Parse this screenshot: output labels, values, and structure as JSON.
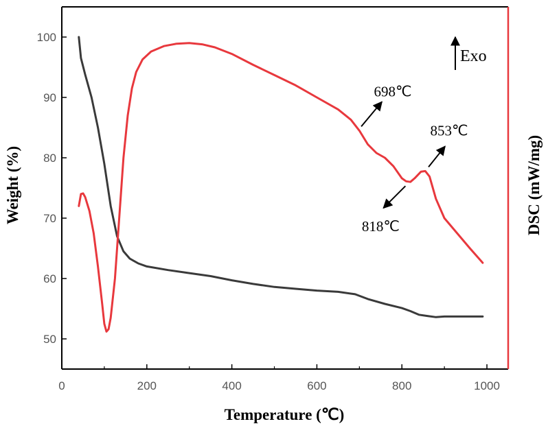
{
  "chart_data": {
    "type": "line",
    "title": "",
    "xlabel": "Temperature (℃)",
    "ylabel": "Weight (%)",
    "y2label": "DSC (mW/mg)",
    "xlim": [
      0,
      1050
    ],
    "ylim": [
      45,
      105
    ],
    "xticks": [
      "0",
      "200",
      "400",
      "600",
      "800",
      "1000"
    ],
    "yticks": [
      "50",
      "60",
      "70",
      "80",
      "90",
      "100"
    ],
    "grid": false,
    "legend": "none",
    "colors": {
      "tg": "#3a3a3a",
      "dsc": "#e8383d",
      "right_axis": "#e8383d"
    },
    "series": [
      {
        "axis": "left",
        "color": "#3a3a3a",
        "x": [
          40,
          45,
          55,
          70,
          85,
          100,
          115,
          130,
          145,
          160,
          180,
          200,
          250,
          300,
          350,
          400,
          450,
          500,
          550,
          600,
          650,
          690,
          720,
          760,
          800,
          820,
          840,
          860,
          880,
          900,
          950,
          990
        ],
        "y": [
          100,
          96.5,
          93.8,
          90,
          85,
          79,
          72,
          67,
          64.5,
          63.3,
          62.5,
          62,
          61.4,
          60.9,
          60.4,
          59.7,
          59.1,
          58.6,
          58.3,
          58,
          57.8,
          57.4,
          56.6,
          55.8,
          55.1,
          54.6,
          54,
          53.8,
          53.6,
          53.7,
          53.7,
          53.7
        ]
      },
      {
        "axis": "right",
        "color": "#e8383d",
        "x": [
          40,
          45,
          50,
          55,
          65,
          75,
          85,
          95,
          100,
          105,
          110,
          115,
          125,
          135,
          145,
          155,
          165,
          175,
          190,
          210,
          240,
          270,
          300,
          330,
          360,
          400,
          450,
          500,
          550,
          600,
          650,
          680,
          700,
          720,
          740,
          760,
          780,
          800,
          810,
          820,
          830,
          845,
          855,
          865,
          880,
          900,
          930,
          960,
          990
        ],
        "y": [
          72,
          74,
          74.1,
          73.5,
          71.2,
          67.5,
          62,
          55.8,
          52.5,
          51.2,
          51.6,
          53.5,
          60,
          70,
          80,
          87,
          91.5,
          94.2,
          96.3,
          97.6,
          98.5,
          98.9,
          99,
          98.8,
          98.3,
          97.2,
          95.4,
          93.7,
          92,
          90,
          88,
          86.3,
          84.5,
          82.2,
          80.8,
          80,
          78.6,
          76.6,
          76.1,
          76,
          76.6,
          77.7,
          77.8,
          76.9,
          73.2,
          70,
          67.5,
          65,
          62.6
        ]
      }
    ],
    "annotations": [
      {
        "text": "698℃",
        "x": 698,
        "y": 84.5
      },
      {
        "text": "853℃",
        "x": 853,
        "y": 77.8
      },
      {
        "text": "818℃",
        "x": 818,
        "y": 76
      }
    ],
    "exo_label": "Exo"
  }
}
